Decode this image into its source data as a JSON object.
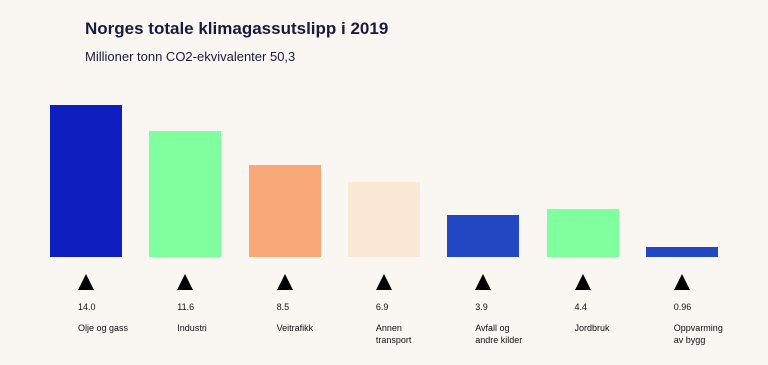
{
  "chart_data": {
    "type": "bar",
    "title": "Norges totale klimagassutslipp i 2019",
    "subtitle": "Millioner tonn CO2-ekvivalenter 50,3",
    "categories": [
      "Olje og gass",
      "Industri",
      "Veitrafikk",
      "Annen transport",
      "Avfall og andre kilder",
      "Jordbruk",
      "Oppvarming av bygg"
    ],
    "values": [
      14.0,
      11.6,
      8.5,
      6.9,
      3.9,
      4.4,
      0.96
    ],
    "value_labels": [
      "14.0",
      "11.6",
      "8.5",
      "6.9",
      "3.9",
      "4.4",
      "0.96"
    ],
    "colors": [
      "#0f1fbf",
      "#80ff9e",
      "#f9a978",
      "#f9e9d6",
      "#2248c4",
      "#80ff9e",
      "#2248c4"
    ]
  }
}
